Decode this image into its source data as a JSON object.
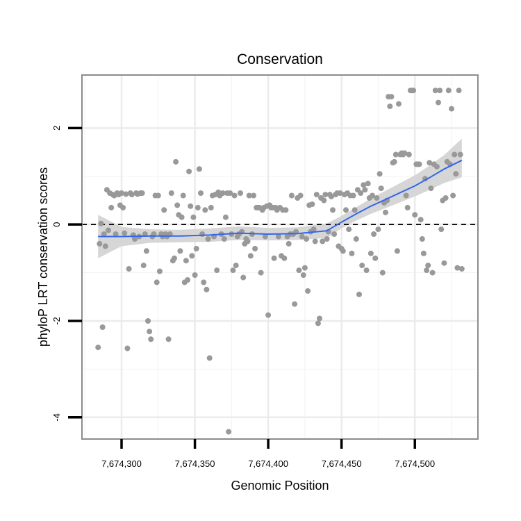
{
  "chart_data": {
    "type": "scatter",
    "title": "Conservation",
    "xlabel": "Genomic Position",
    "ylabel": "phyloP LRT conservation scores",
    "xlim": [
      7674273,
      7674543
    ],
    "ylim": [
      -4.45,
      3.1
    ],
    "x_ticks": [
      7674300,
      7674350,
      7674400,
      7674450,
      7674500
    ],
    "x_tick_labels": [
      "7,674,300",
      "7,674,350",
      "7,674,400",
      "7,674,450",
      "7,674,500"
    ],
    "y_ticks": [
      2,
      0,
      -2,
      -4
    ],
    "y_tick_labels": [
      "2",
      "0",
      "-2",
      "-4"
    ],
    "reference_line": {
      "y": 0,
      "style": "dashed"
    },
    "grid": true,
    "point_color": "#999999",
    "smooth_color": "#3366ee",
    "band_color": "#d6d6d6",
    "points": [
      [
        7674284,
        -2.55
      ],
      [
        7674285,
        -0.4
      ],
      [
        7674286,
        0.02
      ],
      [
        7674287,
        -2.13
      ],
      [
        7674288,
        -0.2
      ],
      [
        7674289,
        -0.45
      ],
      [
        7674290,
        0.72
      ],
      [
        7674291,
        -0.12
      ],
      [
        7674292,
        0.65
      ],
      [
        7674293,
        0.35
      ],
      [
        7674294,
        0.62
      ],
      [
        7674295,
        0.6
      ],
      [
        7674296,
        -0.2
      ],
      [
        7674297,
        0.65
      ],
      [
        7674298,
        0.62
      ],
      [
        7674299,
        0.4
      ],
      [
        7674300,
        0.65
      ],
      [
        7674301,
        0.35
      ],
      [
        7674302,
        -0.18
      ],
      [
        7674303,
        0.63
      ],
      [
        7674304,
        -2.57
      ],
      [
        7674305,
        -0.92
      ],
      [
        7674306,
        0.65
      ],
      [
        7674307,
        0.62
      ],
      [
        7674308,
        -0.22
      ],
      [
        7674309,
        -0.3
      ],
      [
        7674310,
        0.65
      ],
      [
        7674311,
        0.63
      ],
      [
        7674312,
        -0.25
      ],
      [
        7674313,
        0.65
      ],
      [
        7674314,
        0.65
      ],
      [
        7674315,
        -0.85
      ],
      [
        7674316,
        -0.2
      ],
      [
        7674317,
        -0.55
      ],
      [
        7674318,
        -2.0
      ],
      [
        7674319,
        -2.22
      ],
      [
        7674320,
        -2.38
      ],
      [
        7674321,
        -0.25
      ],
      [
        7674322,
        -0.2
      ],
      [
        7674323,
        0.6
      ],
      [
        7674324,
        -1.2
      ],
      [
        7674325,
        0.6
      ],
      [
        7674326,
        -0.97
      ],
      [
        7674327,
        -0.2
      ],
      [
        7674328,
        -0.25
      ],
      [
        7674329,
        0.3
      ],
      [
        7674330,
        -0.2
      ],
      [
        7674331,
        -0.25
      ],
      [
        7674332,
        -2.38
      ],
      [
        7674333,
        -0.2
      ],
      [
        7674334,
        0.65
      ],
      [
        7674335,
        -0.75
      ],
      [
        7674336,
        -0.7
      ],
      [
        7674337,
        1.3
      ],
      [
        7674338,
        0.4
      ],
      [
        7674339,
        0.2
      ],
      [
        7674340,
        -0.55
      ],
      [
        7674341,
        0.15
      ],
      [
        7674342,
        0.6
      ],
      [
        7674343,
        -1.2
      ],
      [
        7674344,
        -0.75
      ],
      [
        7674345,
        -1.15
      ],
      [
        7674346,
        1.1
      ],
      [
        7674347,
        0.38
      ],
      [
        7674348,
        -0.65
      ],
      [
        7674349,
        0.15
      ],
      [
        7674350,
        -1.05
      ],
      [
        7674351,
        -0.5
      ],
      [
        7674352,
        0.35
      ],
      [
        7674353,
        1.15
      ],
      [
        7674354,
        0.65
      ],
      [
        7674355,
        -0.2
      ],
      [
        7674356,
        -1.2
      ],
      [
        7674357,
        0.3
      ],
      [
        7674358,
        -1.35
      ],
      [
        7674359,
        -0.3
      ],
      [
        7674360,
        -2.77
      ],
      [
        7674361,
        0.35
      ],
      [
        7674362,
        0.6
      ],
      [
        7674363,
        -0.25
      ],
      [
        7674364,
        0.62
      ],
      [
        7674365,
        -0.95
      ],
      [
        7674366,
        0.67
      ],
      [
        7674367,
        0.6
      ],
      [
        7674368,
        -0.2
      ],
      [
        7674369,
        0.65
      ],
      [
        7674370,
        -0.3
      ],
      [
        7674371,
        0.15
      ],
      [
        7674372,
        0.65
      ],
      [
        7674373,
        -4.3
      ],
      [
        7674374,
        0.65
      ],
      [
        7674375,
        -0.2
      ],
      [
        7674376,
        -0.95
      ],
      [
        7674377,
        0.6
      ],
      [
        7674378,
        -0.85
      ],
      [
        7674379,
        -0.25
      ],
      [
        7674380,
        -0.2
      ],
      [
        7674381,
        0.65
      ],
      [
        7674382,
        -0.15
      ],
      [
        7674383,
        -1.1
      ],
      [
        7674384,
        -0.4
      ],
      [
        7674385,
        -0.3
      ],
      [
        7674386,
        -0.35
      ],
      [
        7674387,
        0.6
      ],
      [
        7674388,
        -0.65
      ],
      [
        7674389,
        -0.2
      ],
      [
        7674390,
        0.6
      ],
      [
        7674391,
        -0.5
      ],
      [
        7674392,
        0.35
      ],
      [
        7674393,
        0.35
      ],
      [
        7674394,
        0.35
      ],
      [
        7674395,
        -1.0
      ],
      [
        7674396,
        0.3
      ],
      [
        7674397,
        0.35
      ],
      [
        7674398,
        -0.25
      ],
      [
        7674399,
        0.38
      ],
      [
        7674400,
        -1.88
      ],
      [
        7674401,
        0.4
      ],
      [
        7674402,
        0.35
      ],
      [
        7674403,
        0.35
      ],
      [
        7674404,
        -0.7
      ],
      [
        7674405,
        0.35
      ],
      [
        7674406,
        0.3
      ],
      [
        7674407,
        -0.25
      ],
      [
        7674408,
        0.35
      ],
      [
        7674409,
        -0.65
      ],
      [
        7674410,
        0.3
      ],
      [
        7674411,
        -0.7
      ],
      [
        7674412,
        0.3
      ],
      [
        7674413,
        -0.25
      ],
      [
        7674414,
        -0.4
      ],
      [
        7674415,
        -0.2
      ],
      [
        7674416,
        0.6
      ],
      [
        7674417,
        -0.2
      ],
      [
        7674418,
        -1.65
      ],
      [
        7674419,
        -0.15
      ],
      [
        7674420,
        0.55
      ],
      [
        7674421,
        -0.95
      ],
      [
        7674422,
        0.6
      ],
      [
        7674423,
        -0.25
      ],
      [
        7674424,
        -1.05
      ],
      [
        7674425,
        -0.9
      ],
      [
        7674426,
        -0.3
      ],
      [
        7674427,
        -1.38
      ],
      [
        7674428,
        0.4
      ],
      [
        7674429,
        -0.15
      ],
      [
        7674430,
        0.42
      ],
      [
        7674431,
        -0.1
      ],
      [
        7674432,
        -0.35
      ],
      [
        7674433,
        0.62
      ],
      [
        7674434,
        -2.05
      ],
      [
        7674435,
        -1.95
      ],
      [
        7674436,
        0.55
      ],
      [
        7674437,
        -0.35
      ],
      [
        7674438,
        0.5
      ],
      [
        7674439,
        0.62
      ],
      [
        7674440,
        -0.3
      ],
      [
        7674441,
        -0.15
      ],
      [
        7674442,
        0.62
      ],
      [
        7674443,
        0.58
      ],
      [
        7674444,
        0.3
      ],
      [
        7674445,
        -0.2
      ],
      [
        7674446,
        0.62
      ],
      [
        7674447,
        0.65
      ],
      [
        7674448,
        -0.45
      ],
      [
        7674449,
        0.65
      ],
      [
        7674450,
        -0.5
      ],
      [
        7674451,
        -0.55
      ],
      [
        7674452,
        0.62
      ],
      [
        7674453,
        0.3
      ],
      [
        7674454,
        0.65
      ],
      [
        7674455,
        -0.1
      ],
      [
        7674456,
        0.6
      ],
      [
        7674457,
        -0.6
      ],
      [
        7674458,
        0.6
      ],
      [
        7674459,
        0.3
      ],
      [
        7674460,
        -0.3
      ],
      [
        7674461,
        0.72
      ],
      [
        7674462,
        -1.45
      ],
      [
        7674463,
        0.65
      ],
      [
        7674464,
        -0.85
      ],
      [
        7674465,
        0.82
      ],
      [
        7674466,
        0.72
      ],
      [
        7674467,
        -0.95
      ],
      [
        7674468,
        0.85
      ],
      [
        7674469,
        0.55
      ],
      [
        7674470,
        -0.6
      ],
      [
        7674471,
        0.6
      ],
      [
        7674472,
        -0.2
      ],
      [
        7674473,
        -0.7
      ],
      [
        7674474,
        0.55
      ],
      [
        7674475,
        -0.1
      ],
      [
        7674476,
        1.05
      ],
      [
        7674477,
        0.75
      ],
      [
        7674478,
        -1.0
      ],
      [
        7674479,
        0.45
      ],
      [
        7674480,
        0.25
      ],
      [
        7674481,
        0.5
      ],
      [
        7674482,
        2.65
      ],
      [
        7674483,
        2.45
      ],
      [
        7674484,
        2.65
      ],
      [
        7674485,
        1.28
      ],
      [
        7674486,
        1.3
      ],
      [
        7674487,
        1.45
      ],
      [
        7674488,
        -0.55
      ],
      [
        7674489,
        2.5
      ],
      [
        7674490,
        1.45
      ],
      [
        7674491,
        1.48
      ],
      [
        7674492,
        1.45
      ],
      [
        7674493,
        1.48
      ],
      [
        7674494,
        0.6
      ],
      [
        7674495,
        0.35
      ],
      [
        7674496,
        1.45
      ],
      [
        7674497,
        2.78
      ],
      [
        7674498,
        2.78
      ],
      [
        7674499,
        2.78
      ],
      [
        7674500,
        0.2
      ],
      [
        7674501,
        1.25
      ],
      [
        7674502,
        1.25
      ],
      [
        7674503,
        1.25
      ],
      [
        7674504,
        0.1
      ],
      [
        7674505,
        -0.3
      ],
      [
        7674506,
        -0.6
      ],
      [
        7674507,
        0.95
      ],
      [
        7674508,
        -0.95
      ],
      [
        7674509,
        -0.85
      ],
      [
        7674510,
        1.28
      ],
      [
        7674511,
        0.75
      ],
      [
        7674512,
        -1.0
      ],
      [
        7674513,
        1.25
      ],
      [
        7674514,
        2.78
      ],
      [
        7674515,
        1.2
      ],
      [
        7674516,
        2.53
      ],
      [
        7674517,
        2.78
      ],
      [
        7674518,
        -0.1
      ],
      [
        7674519,
        0.5
      ],
      [
        7674520,
        -0.8
      ],
      [
        7674521,
        0.55
      ],
      [
        7674522,
        1.3
      ],
      [
        7674523,
        2.78
      ],
      [
        7674524,
        1.25
      ],
      [
        7674525,
        2.4
      ],
      [
        7674526,
        0.6
      ],
      [
        7674527,
        1.45
      ],
      [
        7674528,
        1.05
      ],
      [
        7674529,
        -0.9
      ],
      [
        7674530,
        2.78
      ],
      [
        7674531,
        1.45
      ],
      [
        7674532,
        -0.92
      ]
    ],
    "smooth": {
      "x": [
        7674284,
        7674300,
        7674320,
        7674340,
        7674360,
        7674380,
        7674400,
        7674420,
        7674440,
        7674450,
        7674460,
        7674470,
        7674480,
        7674490,
        7674500,
        7674510,
        7674520,
        7674532
      ],
      "y": [
        -0.25,
        -0.25,
        -0.24,
        -0.24,
        -0.22,
        -0.18,
        -0.2,
        -0.19,
        -0.13,
        0.05,
        0.22,
        0.38,
        0.52,
        0.66,
        0.8,
        0.97,
        1.15,
        1.33
      ],
      "lower": [
        -0.7,
        -0.45,
        -0.38,
        -0.37,
        -0.36,
        -0.32,
        -0.33,
        -0.32,
        -0.28,
        -0.08,
        0.08,
        0.22,
        0.34,
        0.46,
        0.58,
        0.72,
        0.86,
        0.98
      ],
      "upper": [
        0.2,
        -0.05,
        -0.1,
        -0.11,
        -0.08,
        -0.04,
        -0.07,
        -0.06,
        0.02,
        0.18,
        0.36,
        0.54,
        0.7,
        0.86,
        1.02,
        1.22,
        1.44,
        1.78
      ]
    }
  }
}
